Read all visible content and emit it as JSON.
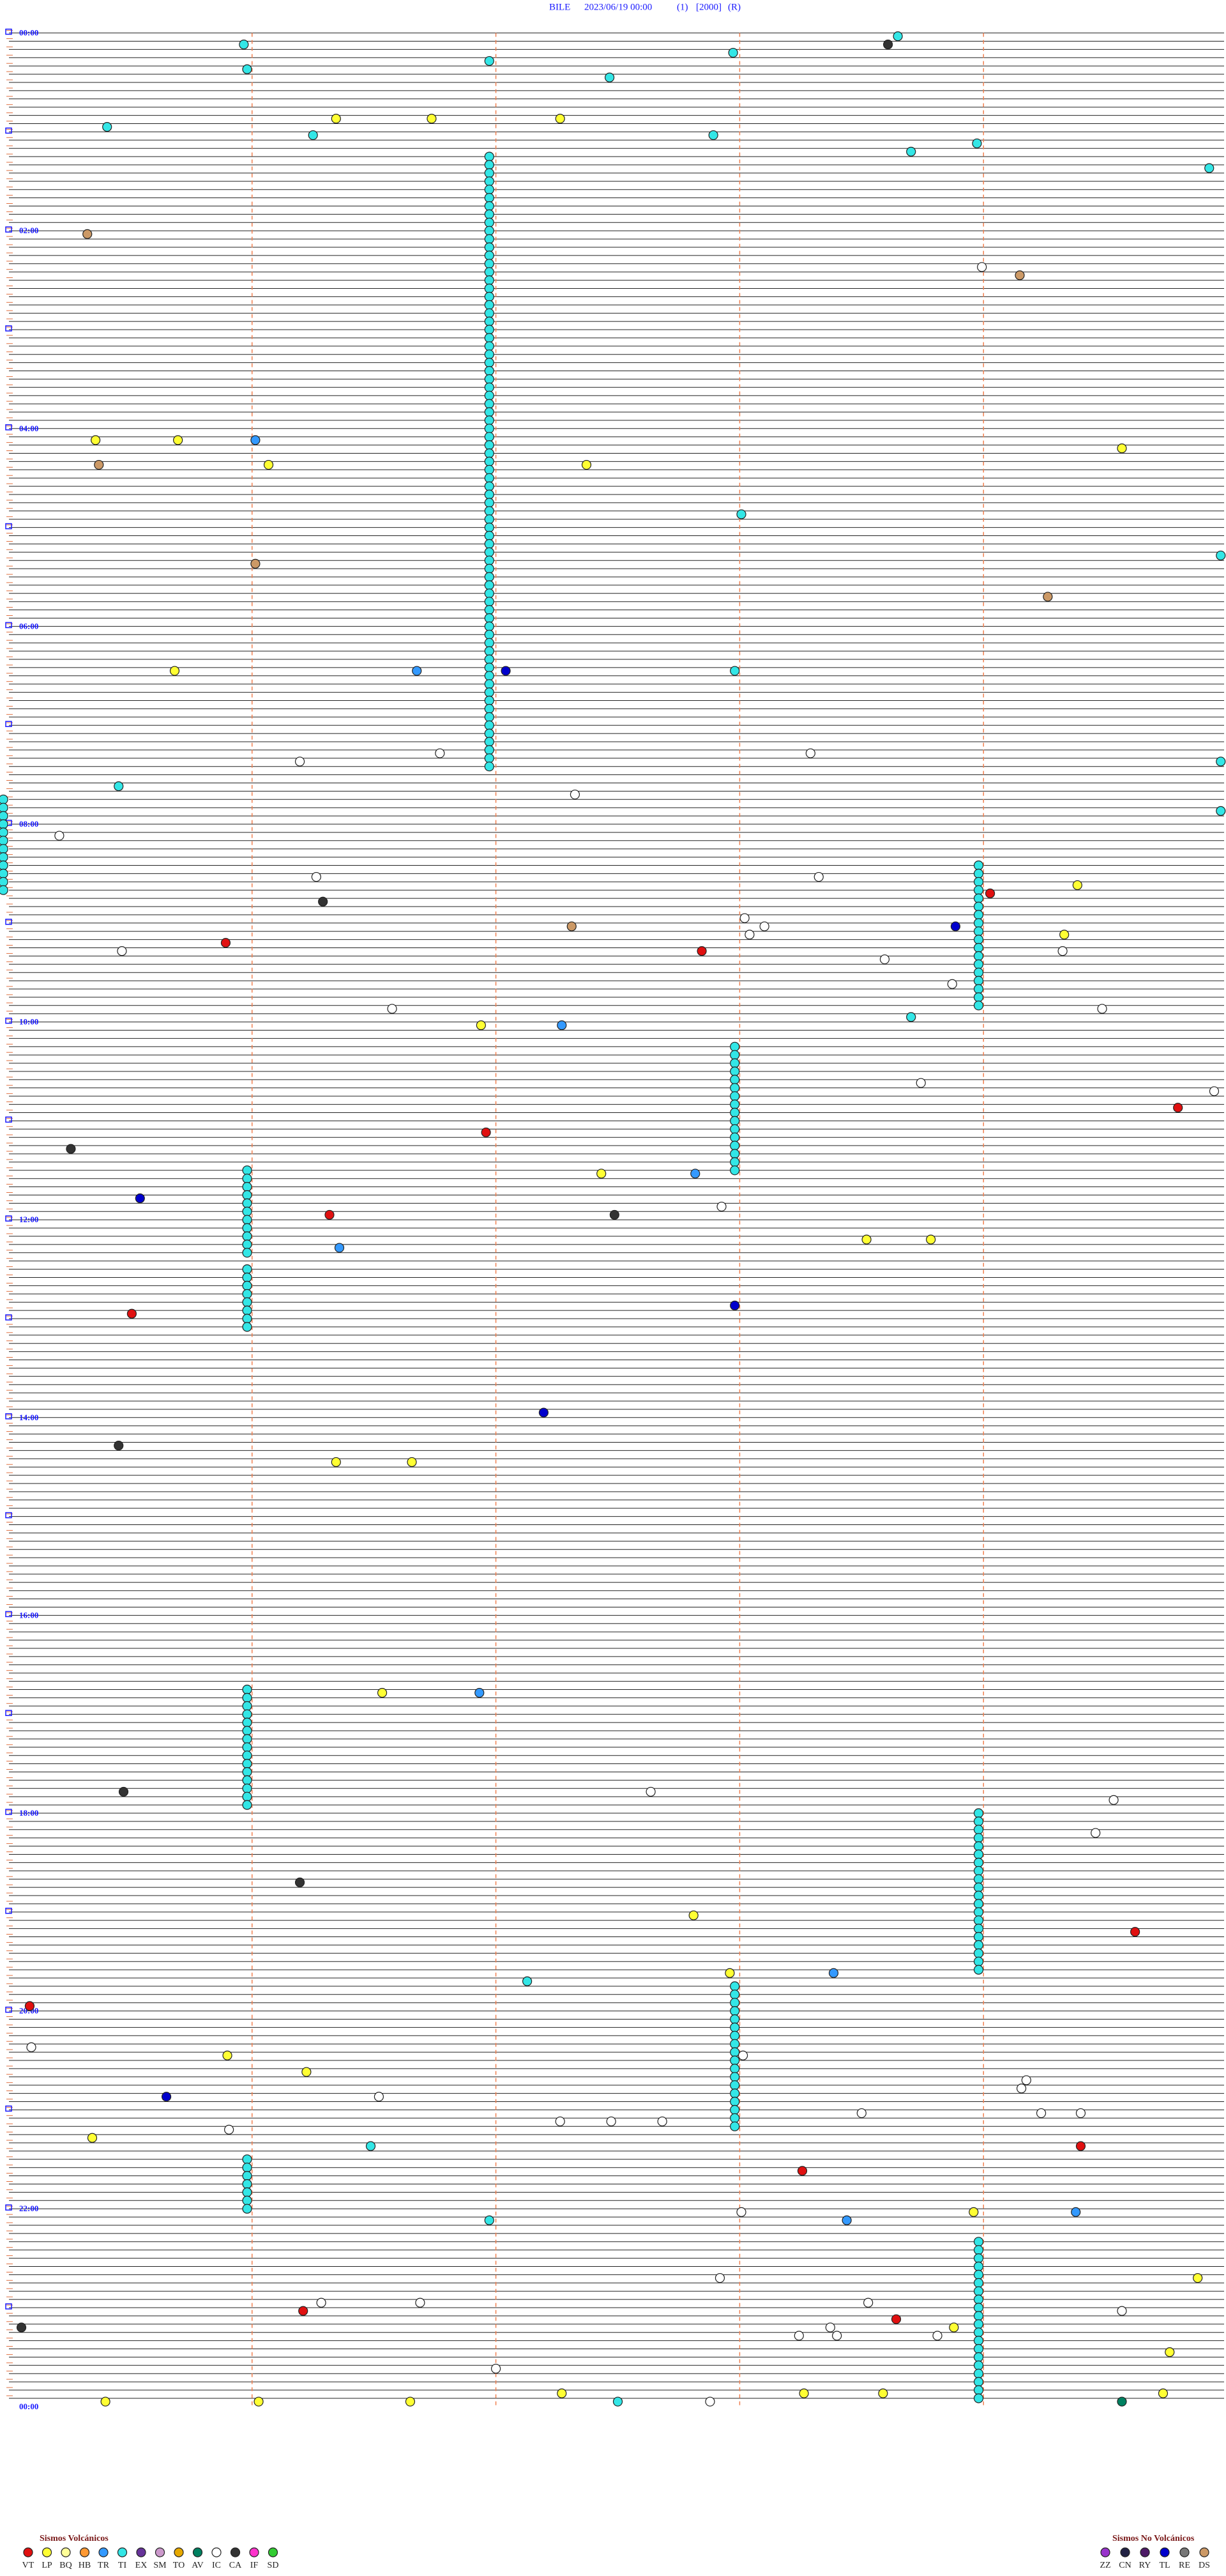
{
  "header": {
    "station": "BILE",
    "datetime": "2023/06/19 00:00",
    "component": "(1)",
    "scale": "[2000]",
    "mode": "(R)"
  },
  "time_labels": [
    "00:00",
    "02:00",
    "04:00",
    "06:00",
    "08:00",
    "10:00",
    "12:00",
    "14:00",
    "16:00",
    "18:00",
    "20:00",
    "22:00",
    "00:00"
  ],
  "legend": {
    "volcanic": {
      "title": "Sismos Volcánicos",
      "items": [
        {
          "code": "VT",
          "color": "#e01010"
        },
        {
          "code": "LP",
          "color": "#ffff33"
        },
        {
          "code": "BQ",
          "color": "#ffff99"
        },
        {
          "code": "HB",
          "color": "#ff9933"
        },
        {
          "code": "TR",
          "color": "#3399ff"
        },
        {
          "code": "TI",
          "color": "#33e6e6"
        },
        {
          "code": "EX",
          "color": "#663399"
        },
        {
          "code": "SM",
          "color": "#cc99cc"
        },
        {
          "code": "TO",
          "color": "#e6a800"
        },
        {
          "code": "AV",
          "color": "#008060"
        },
        {
          "code": "IC",
          "color": "#ffffff"
        },
        {
          "code": "CA",
          "color": "#333333"
        },
        {
          "code": "IF",
          "color": "#ff33cc"
        },
        {
          "code": "SD",
          "color": "#33cc33"
        }
      ]
    },
    "non_volcanic": {
      "title": "Sismos No Volcánicos",
      "items": [
        {
          "code": "ZZ",
          "color": "#9933cc"
        },
        {
          "code": "CN",
          "color": "#222244"
        },
        {
          "code": "RY",
          "color": "#4d1a66"
        },
        {
          "code": "TL",
          "color": "#0000cc"
        },
        {
          "code": "RE",
          "color": "#777777"
        },
        {
          "code": "DS",
          "color": "#cc9966"
        }
      ]
    }
  }
}
